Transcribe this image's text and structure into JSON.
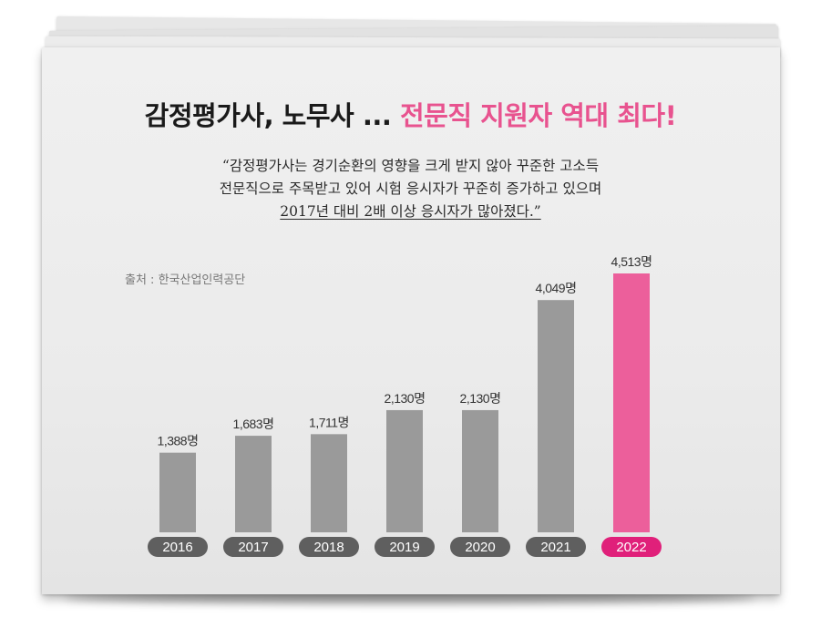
{
  "headline": {
    "part1": "감정평가사, 노무사 ...",
    "part2": "전문직 지원자 역대 최다!"
  },
  "quote": {
    "line1": "“감정평가사는 경기순환의 영향을 크게 받지 않아 꾸준한 고소득",
    "line2": "전문직으로 주목받고 있어 시험 응시자가 꾸준히 증가하고 있으며",
    "line3": "2017년 대비 2배 이상 응시자가 많아졌다.”"
  },
  "source": "출처 : 한국산업인력공단",
  "colors": {
    "bar": "#9a9a9a",
    "highlight": "#ec5f9b",
    "pill": "#5f5f5f",
    "pill_highlight": "#e0207a",
    "label": "#333333"
  },
  "chart_data": {
    "type": "bar",
    "categories": [
      "2016",
      "2017",
      "2018",
      "2019",
      "2020",
      "2021",
      "2022"
    ],
    "values": [
      1388,
      1683,
      1711,
      2130,
      2130,
      4049,
      4513
    ],
    "value_labels": [
      "1,388명",
      "1,683명",
      "1,711명",
      "2,130명",
      "2,130명",
      "4,049명",
      "4,513명"
    ],
    "highlight_index": 6,
    "title": "",
    "xlabel": "",
    "ylabel": "",
    "grid": false
  }
}
